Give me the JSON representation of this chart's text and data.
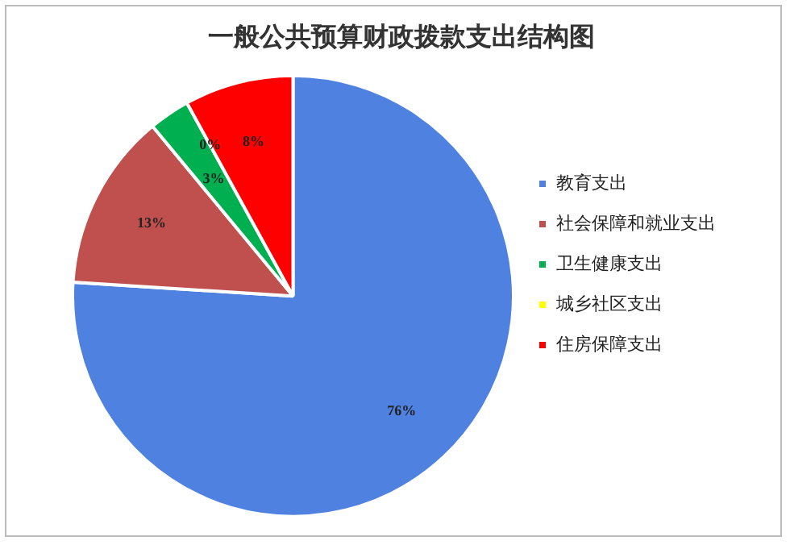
{
  "chart_data": {
    "type": "pie",
    "title": "一般公共预算财政拨款支出结构图",
    "categories": [
      "教育支出",
      "社会保障和就业支出",
      "卫生健康支出",
      "城乡社区支出",
      "住房保障支出"
    ],
    "values": [
      76,
      13,
      3,
      0,
      8
    ],
    "colors": [
      "#4f81e0",
      "#c0504d",
      "#00b050",
      "#ffff00",
      "#ff0000"
    ],
    "value_labels": [
      "76%",
      "13%",
      "3%",
      "0%",
      "8%"
    ],
    "legend": "right"
  }
}
